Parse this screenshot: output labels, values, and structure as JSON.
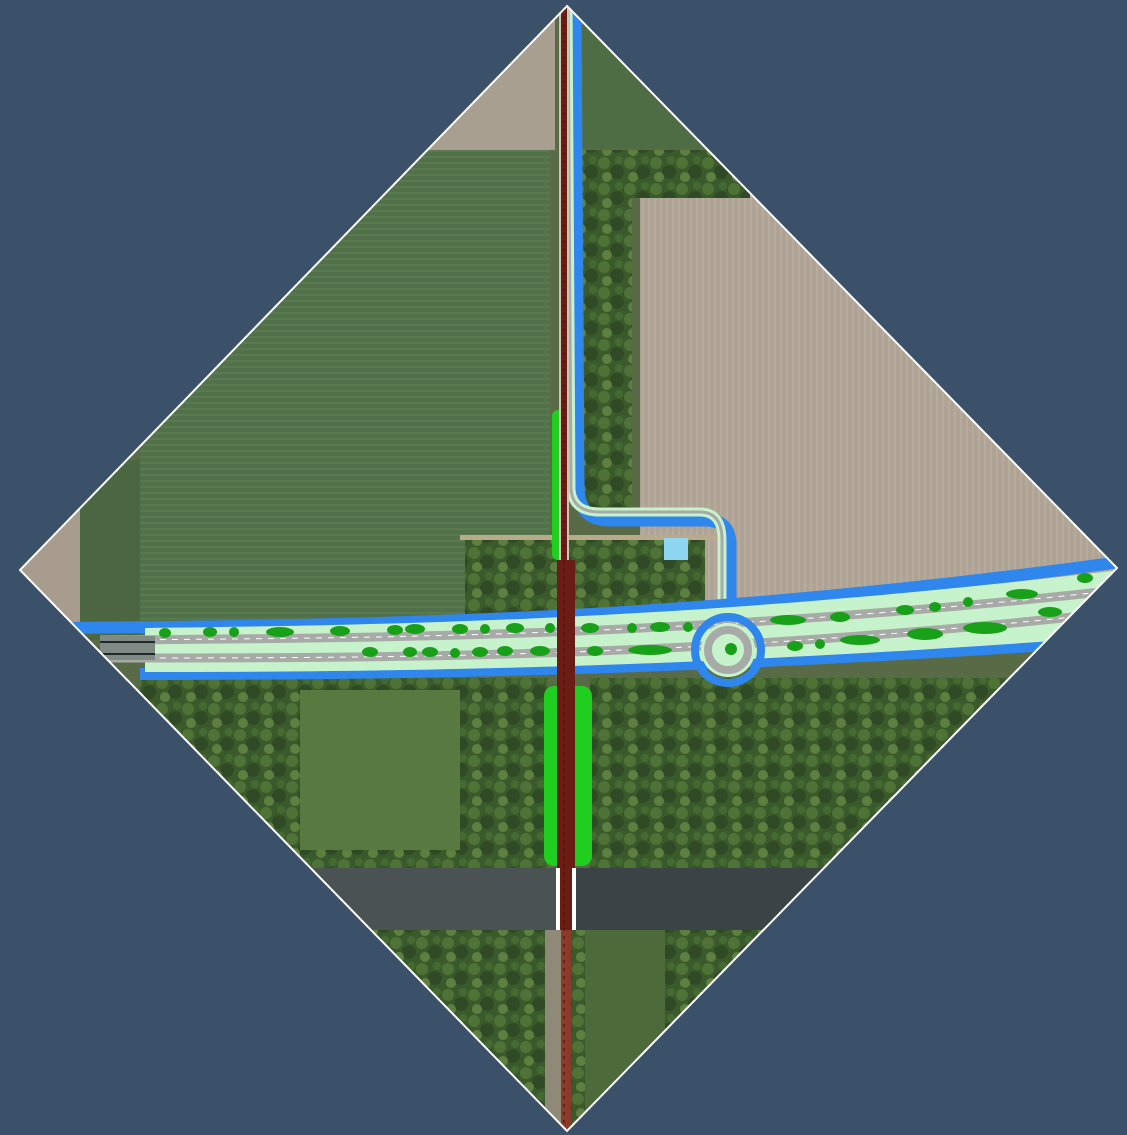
{
  "map": {
    "kind": "aerial-plan-overlay",
    "frame_shape": "diamond",
    "colors": {
      "page_background": "#3b5069",
      "frame_border": "#ffffff",
      "field_green": "#53704a",
      "field_tan": "#b0a596",
      "forest": "#3d5a2e",
      "canal": "#3a4345",
      "water_ditch": "#2f86ec",
      "verge_light_green": "#c6f3cc",
      "road_gray": "#a8aaa8",
      "tree_green": "#19a019",
      "rail_maroon": "#6b1d14",
      "embankment_green": "#1fce1f"
    },
    "layers": [
      "aerial-photo",
      "planned-main-road",
      "roundabout",
      "side-road",
      "rail-line",
      "water-ditches",
      "tree-planting"
    ]
  }
}
